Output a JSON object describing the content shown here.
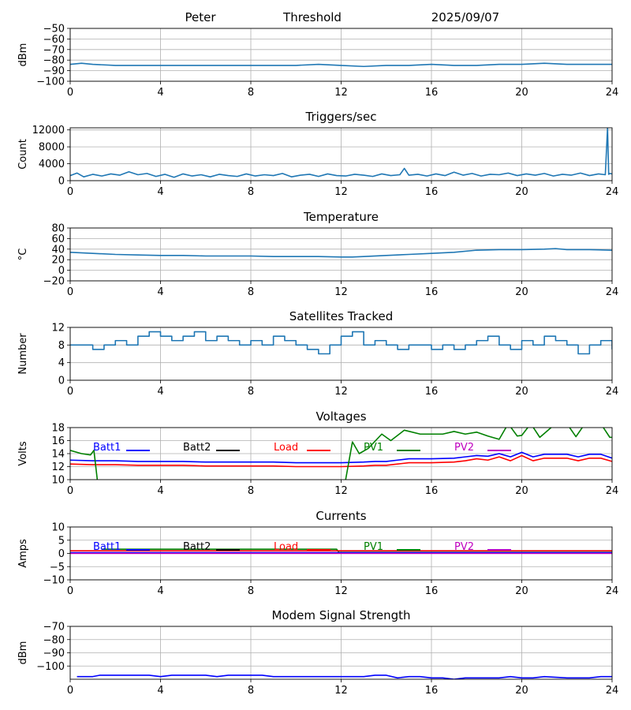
{
  "header": {
    "name": "Peter",
    "mode": "Threshold",
    "date": "2025/09/07"
  },
  "chart_data": [
    {
      "id": "threshold",
      "type": "line",
      "title": "",
      "ylabel": "dBm",
      "xlim": [
        0,
        24
      ],
      "ylim": [
        -100,
        -50
      ],
      "xticks": [
        0,
        4,
        8,
        12,
        16,
        20,
        24
      ],
      "yticks": [
        -100,
        -90,
        -80,
        -70,
        -60,
        -50
      ],
      "yticklabels": [
        "−100",
        "−90",
        "−80",
        "−70",
        "−60",
        "−50"
      ],
      "grid": true,
      "series": [
        {
          "color": "#1f77b4",
          "x": [
            0,
            0.5,
            1,
            2,
            3,
            4,
            5,
            6,
            7,
            8,
            9,
            10,
            11,
            12,
            13,
            14,
            15,
            16,
            17,
            18,
            19,
            20,
            21,
            22,
            23,
            24
          ],
          "y": [
            -84,
            -83,
            -84,
            -85,
            -85,
            -85,
            -85,
            -85,
            -85,
            -85,
            -85,
            -85,
            -84,
            -85,
            -86,
            -85,
            -85,
            -84,
            -85,
            -85,
            -84,
            -84,
            -83,
            -84,
            -84,
            -84
          ]
        }
      ]
    },
    {
      "id": "triggers",
      "type": "line",
      "title": "Triggers/sec",
      "ylabel": "Count",
      "xlim": [
        0,
        24
      ],
      "ylim": [
        0,
        12500
      ],
      "xticks": [
        0,
        4,
        8,
        12,
        16,
        20,
        24
      ],
      "yticks": [
        0,
        4000,
        8000,
        12000
      ],
      "yticklabels": [
        "0",
        "4000",
        "8000",
        "12000"
      ],
      "grid": true,
      "series": [
        {
          "color": "#1f77b4",
          "x": [
            0,
            0.3,
            0.6,
            1,
            1.4,
            1.8,
            2.2,
            2.6,
            3,
            3.4,
            3.8,
            4.2,
            4.6,
            5,
            5.4,
            5.8,
            6.2,
            6.6,
            7,
            7.4,
            7.8,
            8.2,
            8.6,
            9,
            9.4,
            9.8,
            10.2,
            10.6,
            11,
            11.4,
            11.8,
            12.2,
            12.6,
            13,
            13.4,
            13.8,
            14.2,
            14.6,
            14.8,
            15,
            15.4,
            15.8,
            16.2,
            16.6,
            17,
            17.4,
            17.8,
            18.2,
            18.6,
            19,
            19.4,
            19.8,
            20.2,
            20.6,
            21,
            21.4,
            21.8,
            22.2,
            22.6,
            23,
            23.4,
            23.7,
            23.8,
            23.85,
            23.9,
            24
          ],
          "y": [
            1200,
            1800,
            900,
            1500,
            1100,
            1600,
            1300,
            2100,
            1400,
            1700,
            1000,
            1500,
            800,
            1600,
            1100,
            1400,
            900,
            1500,
            1200,
            1000,
            1600,
            1100,
            1400,
            1200,
            1700,
            900,
            1300,
            1500,
            1000,
            1600,
            1200,
            1100,
            1500,
            1300,
            1000,
            1600,
            1200,
            1400,
            2900,
            1300,
            1500,
            1100,
            1600,
            1200,
            2000,
            1300,
            1700,
            1100,
            1500,
            1400,
            1800,
            1200,
            1600,
            1300,
            1700,
            1100,
            1500,
            1300,
            1800,
            1200,
            1600,
            1400,
            12500,
            1500,
            1700,
            1600
          ]
        }
      ]
    },
    {
      "id": "temperature",
      "type": "line",
      "title": "Temperature",
      "ylabel": "°C",
      "xlim": [
        0,
        24
      ],
      "ylim": [
        -20,
        80
      ],
      "xticks": [
        0,
        4,
        8,
        12,
        16,
        20,
        24
      ],
      "yticks": [
        -20,
        0,
        20,
        40,
        60,
        80
      ],
      "yticklabels": [
        "−20",
        "0",
        "20",
        "40",
        "60",
        "80"
      ],
      "grid": true,
      "series": [
        {
          "color": "#1f77b4",
          "x": [
            0,
            1,
            2,
            3,
            4,
            5,
            6,
            7,
            8,
            9,
            10,
            11,
            12,
            12.5,
            13,
            14,
            15,
            16,
            17,
            18,
            19,
            20,
            21,
            21.5,
            22,
            23,
            24
          ],
          "y": [
            34,
            32,
            30,
            29,
            28,
            28,
            27,
            27,
            27,
            26,
            26,
            26,
            25,
            25,
            26,
            28,
            30,
            32,
            34,
            38,
            39,
            39,
            40,
            41,
            39,
            39,
            38
          ]
        }
      ]
    },
    {
      "id": "satellites",
      "type": "line",
      "title": "Satellites Tracked",
      "ylabel": "Number",
      "xlim": [
        0,
        24
      ],
      "ylim": [
        0,
        12
      ],
      "xticks": [
        0,
        4,
        8,
        12,
        16,
        20,
        24
      ],
      "yticks": [
        0,
        4,
        8,
        12
      ],
      "yticklabels": [
        "0",
        "4",
        "8",
        "12"
      ],
      "grid": true,
      "step": true,
      "series": [
        {
          "color": "#1f77b4",
          "x": [
            0,
            0.5,
            1,
            1.5,
            2,
            2.5,
            3,
            3.5,
            4,
            4.5,
            5,
            5.5,
            6,
            6.5,
            7,
            7.5,
            8,
            8.5,
            9,
            9.5,
            10,
            10.5,
            11,
            11.5,
            12,
            12.5,
            13,
            13.5,
            14,
            14.5,
            15,
            15.5,
            16,
            16.5,
            17,
            17.5,
            18,
            18.5,
            19,
            19.5,
            20,
            20.5,
            21,
            21.5,
            22,
            22.5,
            23,
            23.5,
            24
          ],
          "y": [
            8,
            8,
            7,
            8,
            9,
            8,
            10,
            11,
            10,
            9,
            10,
            11,
            9,
            10,
            9,
            8,
            9,
            8,
            10,
            9,
            8,
            7,
            6,
            8,
            10,
            11,
            8,
            9,
            8,
            7,
            8,
            8,
            7,
            8,
            7,
            8,
            9,
            10,
            8,
            7,
            9,
            8,
            10,
            9,
            8,
            6,
            8,
            9,
            7
          ]
        }
      ]
    },
    {
      "id": "voltages",
      "type": "line",
      "title": "Voltages",
      "ylabel": "Volts",
      "xlim": [
        0,
        24
      ],
      "ylim": [
        10,
        18
      ],
      "xticks": [
        0,
        4,
        8,
        12,
        16,
        20,
        24
      ],
      "yticks": [
        10,
        12,
        14,
        16,
        18
      ],
      "yticklabels": [
        "10",
        "12",
        "14",
        "16",
        "18"
      ],
      "grid": true,
      "legend": [
        {
          "label": "Batt1",
          "color": "#0000ff"
        },
        {
          "label": "Batt2",
          "color": "#000000"
        },
        {
          "label": "Load",
          "color": "#ff0000"
        },
        {
          "label": "PV1",
          "color": "#008000"
        },
        {
          "label": "PV2",
          "color": "#bf00bf"
        }
      ],
      "series": [
        {
          "name": "Batt1",
          "color": "#0000ff",
          "x": [
            0,
            1,
            2,
            3,
            4,
            5,
            6,
            7,
            8,
            9,
            10,
            11,
            12,
            13,
            13.5,
            14,
            14.5,
            15,
            16,
            17,
            17.5,
            18,
            18.5,
            19,
            19.5,
            20,
            20.5,
            21,
            22,
            22.5,
            23,
            23.5,
            24
          ],
          "y": [
            13.0,
            12.9,
            12.9,
            12.8,
            12.8,
            12.8,
            12.7,
            12.7,
            12.7,
            12.7,
            12.6,
            12.6,
            12.6,
            12.7,
            12.8,
            12.8,
            13.0,
            13.2,
            13.2,
            13.3,
            13.5,
            13.7,
            13.6,
            14.0,
            13.5,
            14.2,
            13.5,
            13.9,
            13.9,
            13.5,
            13.9,
            13.9,
            13.3
          ]
        },
        {
          "name": "Load",
          "color": "#ff0000",
          "x": [
            0,
            1,
            2,
            3,
            4,
            5,
            6,
            7,
            8,
            9,
            10,
            11,
            12,
            13,
            13.5,
            14,
            14.5,
            15,
            16,
            17,
            17.5,
            18,
            18.5,
            19,
            19.5,
            20,
            20.5,
            21,
            22,
            22.5,
            23,
            23.5,
            24
          ],
          "y": [
            12.4,
            12.3,
            12.3,
            12.2,
            12.2,
            12.2,
            12.1,
            12.1,
            12.1,
            12.1,
            12.0,
            12.0,
            12.0,
            12.1,
            12.2,
            12.2,
            12.4,
            12.6,
            12.6,
            12.7,
            12.9,
            13.2,
            13.0,
            13.5,
            12.9,
            13.7,
            12.9,
            13.3,
            13.3,
            12.9,
            13.3,
            13.3,
            12.8
          ]
        },
        {
          "name": "PV1",
          "color": "#008000",
          "x": [
            0,
            0.5,
            0.9,
            1.05,
            1.2,
            1.6,
            11.8,
            12.2,
            12.5,
            12.8,
            13.2,
            13.8,
            14.2,
            14.8,
            15.5,
            16.5,
            17,
            17.5,
            18,
            18.5,
            19,
            19.4,
            19.8,
            20,
            20.4,
            20.8,
            21.5,
            22,
            22.4,
            22.8,
            23.5,
            23.9,
            24
          ],
          "y": [
            14.5,
            14.0,
            13.8,
            14.5,
            10.0,
            5.0,
            5.0,
            10.0,
            15.8,
            14.0,
            14.8,
            17.0,
            16.0,
            17.6,
            17.0,
            17.0,
            17.4,
            17.0,
            17.3,
            16.7,
            16.2,
            18.6,
            16.7,
            16.8,
            18.6,
            16.5,
            18.6,
            18.6,
            16.6,
            18.6,
            18.6,
            16.5,
            16.5
          ]
        }
      ]
    },
    {
      "id": "currents",
      "type": "line",
      "title": "Currents",
      "ylabel": "Amps",
      "xlim": [
        0,
        24
      ],
      "ylim": [
        -10,
        10
      ],
      "xticks": [
        0,
        4,
        8,
        12,
        16,
        20,
        24
      ],
      "yticks": [
        -10,
        -5,
        0,
        5,
        10
      ],
      "yticklabels": [
        "−10",
        "−5",
        "0",
        "5",
        "10"
      ],
      "grid": true,
      "legend": [
        {
          "label": "Batt1",
          "color": "#0000ff"
        },
        {
          "label": "Batt2",
          "color": "#000000"
        },
        {
          "label": "Load",
          "color": "#ff0000"
        },
        {
          "label": "PV1",
          "color": "#008000"
        },
        {
          "label": "PV2",
          "color": "#bf00bf"
        }
      ],
      "series": [
        {
          "name": "PV1",
          "color": "#008000",
          "x": [
            1.4,
            4,
            8,
            11.8,
            11.9,
            24
          ],
          "y": [
            1.6,
            1.6,
            1.6,
            1.6,
            0.4,
            0.4
          ]
        },
        {
          "name": "Load",
          "color": "#ff0000",
          "x": [
            0,
            4,
            8,
            12,
            16,
            20,
            24
          ],
          "y": [
            1.0,
            1.0,
            1.0,
            1.0,
            1.0,
            1.0,
            1.0
          ]
        },
        {
          "name": "Batt1",
          "color": "#0000ff",
          "x": [
            0,
            4,
            8,
            12,
            16,
            20,
            24
          ],
          "y": [
            0.3,
            0.3,
            0.3,
            0.3,
            0.3,
            0.3,
            0.3
          ]
        },
        {
          "name": "PV2",
          "color": "#bf00bf",
          "x": [
            0,
            4,
            8,
            12,
            16,
            20,
            24
          ],
          "y": [
            0.0,
            0.0,
            0.0,
            0.0,
            0.0,
            0.0,
            0.0
          ]
        }
      ]
    },
    {
      "id": "modem",
      "type": "line",
      "title": "Modem Signal Strength",
      "ylabel": "dBm",
      "xlim": [
        0,
        24
      ],
      "ylim": [
        -110,
        -70
      ],
      "xticks": [
        0,
        4,
        8,
        12,
        16,
        20,
        24
      ],
      "yticks": [
        -100,
        -90,
        -80,
        -70
      ],
      "yticklabels": [
        "−100",
        "−90",
        "−80",
        "−70"
      ],
      "grid": true,
      "series": [
        {
          "color": "#0000ff",
          "x": [
            0.3,
            1,
            1.3,
            2,
            3,
            3.5,
            4,
            4.5,
            5,
            6,
            6.5,
            7,
            8,
            8.5,
            9,
            10,
            11,
            12,
            13,
            13.5,
            14,
            14.5,
            15,
            15.5,
            16,
            16.5,
            17,
            17.5,
            18,
            19,
            19.5,
            20,
            20.5,
            21,
            22,
            23,
            23.5,
            24
          ],
          "y": [
            -108,
            -108,
            -107,
            -107,
            -107,
            -107,
            -108,
            -107,
            -107,
            -107,
            -108,
            -107,
            -107,
            -107,
            -108,
            -108,
            -108,
            -108,
            -108,
            -107,
            -107,
            -109,
            -108,
            -108,
            -109,
            -109,
            -110,
            -109,
            -109,
            -109,
            -108,
            -109,
            -109,
            -108,
            -109,
            -109,
            -108,
            -108
          ]
        }
      ]
    }
  ]
}
